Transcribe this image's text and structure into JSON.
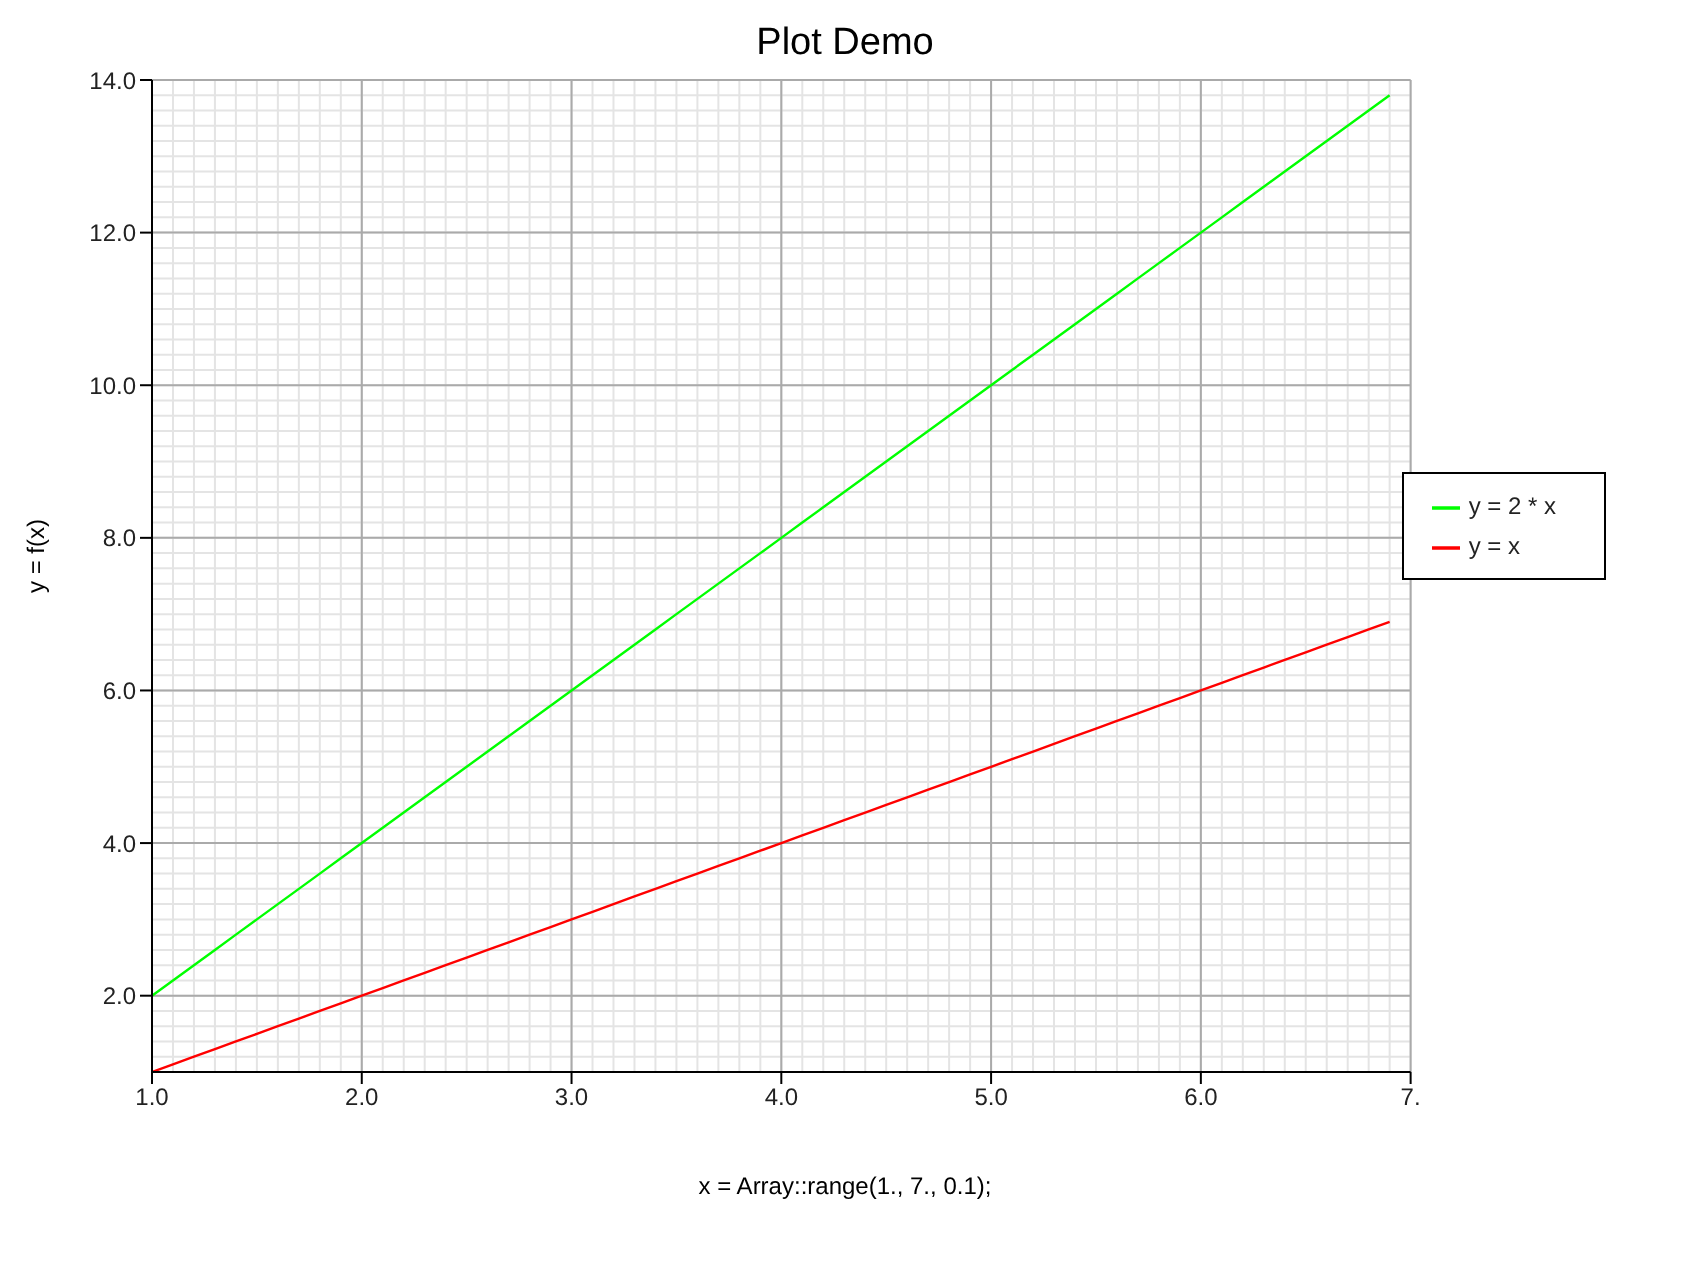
{
  "chart_data": {
    "type": "line",
    "title": "Plot Demo",
    "xlabel": "x = Array::range(1., 7., 0.1);",
    "ylabel": "y = f(x)",
    "x": [
      1.0,
      1.1,
      1.2,
      1.3,
      1.4,
      1.5,
      1.6,
      1.7,
      1.8,
      1.9,
      2.0,
      2.1,
      2.2,
      2.3,
      2.4,
      2.5,
      2.6,
      2.7,
      2.8,
      2.9,
      3.0,
      3.1,
      3.2,
      3.3,
      3.4,
      3.5,
      3.6,
      3.7,
      3.8,
      3.9,
      4.0,
      4.1,
      4.2,
      4.3,
      4.4,
      4.5,
      4.6,
      4.7,
      4.8,
      4.9,
      5.0,
      5.1,
      5.2,
      5.3,
      5.4,
      5.5,
      5.6,
      5.7,
      5.8,
      5.9,
      6.0,
      6.1,
      6.2,
      6.3,
      6.4,
      6.5,
      6.6,
      6.7,
      6.8,
      6.9
    ],
    "series": [
      {
        "name": "y = x",
        "color": "#ff0000",
        "values": [
          1.0,
          1.1,
          1.2,
          1.3,
          1.4,
          1.5,
          1.6,
          1.7,
          1.8,
          1.9,
          2.0,
          2.1,
          2.2,
          2.3,
          2.4,
          2.5,
          2.6,
          2.7,
          2.8,
          2.9,
          3.0,
          3.1,
          3.2,
          3.3,
          3.4,
          3.5,
          3.6,
          3.7,
          3.8,
          3.9,
          4.0,
          4.1,
          4.2,
          4.3,
          4.4,
          4.5,
          4.6,
          4.7,
          4.8,
          4.9,
          5.0,
          5.1,
          5.2,
          5.3,
          5.4,
          5.5,
          5.6,
          5.7,
          5.8,
          5.9,
          6.0,
          6.1,
          6.2,
          6.3,
          6.4,
          6.5,
          6.6,
          6.7,
          6.8,
          6.9
        ]
      },
      {
        "name": "y = 2 * x",
        "color": "#00ff00",
        "values": [
          2.0,
          2.2,
          2.4,
          2.6,
          2.8,
          3.0,
          3.2,
          3.4,
          3.6,
          3.8,
          4.0,
          4.2,
          4.4,
          4.6,
          4.8,
          5.0,
          5.2,
          5.4,
          5.6,
          5.8,
          6.0,
          6.2,
          6.4,
          6.6,
          6.8,
          7.0,
          7.2,
          7.4,
          7.6,
          7.8,
          8.0,
          8.2,
          8.4,
          8.6,
          8.8,
          9.0,
          9.2,
          9.4,
          9.6,
          9.8,
          10.0,
          10.2,
          10.4,
          10.6,
          10.8,
          11.0,
          11.2,
          11.4,
          11.6,
          11.8,
          12.0,
          12.2,
          12.4,
          12.6,
          12.8,
          13.0,
          13.2,
          13.4,
          13.6,
          13.8
        ]
      }
    ],
    "xlim": [
      1,
      7
    ],
    "xticks": [
      {
        "value": 1,
        "label": "1.0"
      },
      {
        "value": 2,
        "label": "2.0"
      },
      {
        "value": 3,
        "label": "3.0"
      },
      {
        "value": 4,
        "label": "4.0"
      },
      {
        "value": 5,
        "label": "5.0"
      },
      {
        "value": 6,
        "label": "6.0"
      },
      {
        "value": 7,
        "label": "7."
      }
    ],
    "ylim": [
      1,
      14
    ],
    "yticks": [
      {
        "value": 2,
        "label": "2.0"
      },
      {
        "value": 4,
        "label": "4.0"
      },
      {
        "value": 6,
        "label": "6.0"
      },
      {
        "value": 8,
        "label": "8.0"
      },
      {
        "value": 10,
        "label": "10.0"
      },
      {
        "value": 12,
        "label": "12.0"
      },
      {
        "value": 14,
        "label": "14.0"
      }
    ],
    "grid": true,
    "legend": "right",
    "marker": "none",
    "line_style": "solid"
  }
}
